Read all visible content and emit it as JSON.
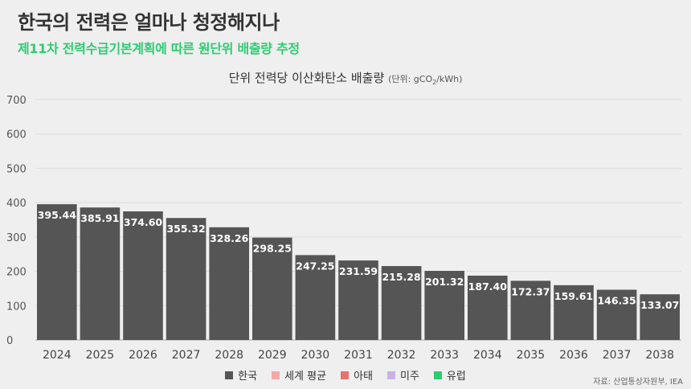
{
  "header": {
    "title": "한국의 전력은 얼마나 청정해지나",
    "subtitle": "제11차 전력수급기본계획에 따른 원단위 배출량 추정"
  },
  "source": "자료: 산업통상자원부, IEA",
  "chart_data": {
    "type": "bar",
    "title": "단위 전력당 이산화탄소 배출량",
    "unit_prefix": "(단위: gCO",
    "unit_sub": "2",
    "unit_suffix": "/kWh)",
    "categories": [
      "2024",
      "2025",
      "2026",
      "2027",
      "2028",
      "2029",
      "2030",
      "2031",
      "2032",
      "2033",
      "2034",
      "2035",
      "2036",
      "2037",
      "2038"
    ],
    "series": [
      {
        "name": "한국",
        "color": "#555555",
        "values": [
          395.44,
          385.91,
          374.6,
          355.32,
          328.26,
          298.25,
          247.25,
          231.59,
          215.28,
          201.32,
          187.4,
          172.37,
          159.61,
          146.35,
          133.07
        ],
        "labels": [
          "395.44",
          "385.91",
          "374.60",
          "355.32",
          "328.26",
          "298.25",
          "247.25",
          "231.59",
          "215.28",
          "201.32",
          "187.40",
          "172.37",
          "159.61",
          "146.35",
          "133.07"
        ]
      }
    ],
    "ylim": [
      0,
      700
    ],
    "yticks": [
      0,
      100,
      200,
      300,
      400,
      500,
      600,
      700
    ],
    "grid": true,
    "legend_position": "bottom",
    "legend": [
      {
        "label": "한국",
        "color": "#555555"
      },
      {
        "label": "세계 평균",
        "color": "#f4a9a8"
      },
      {
        "label": "아태",
        "color": "#e8706e"
      },
      {
        "label": "미주",
        "color": "#c9b3e6"
      },
      {
        "label": "유럽",
        "color": "#2ecc71"
      }
    ]
  }
}
